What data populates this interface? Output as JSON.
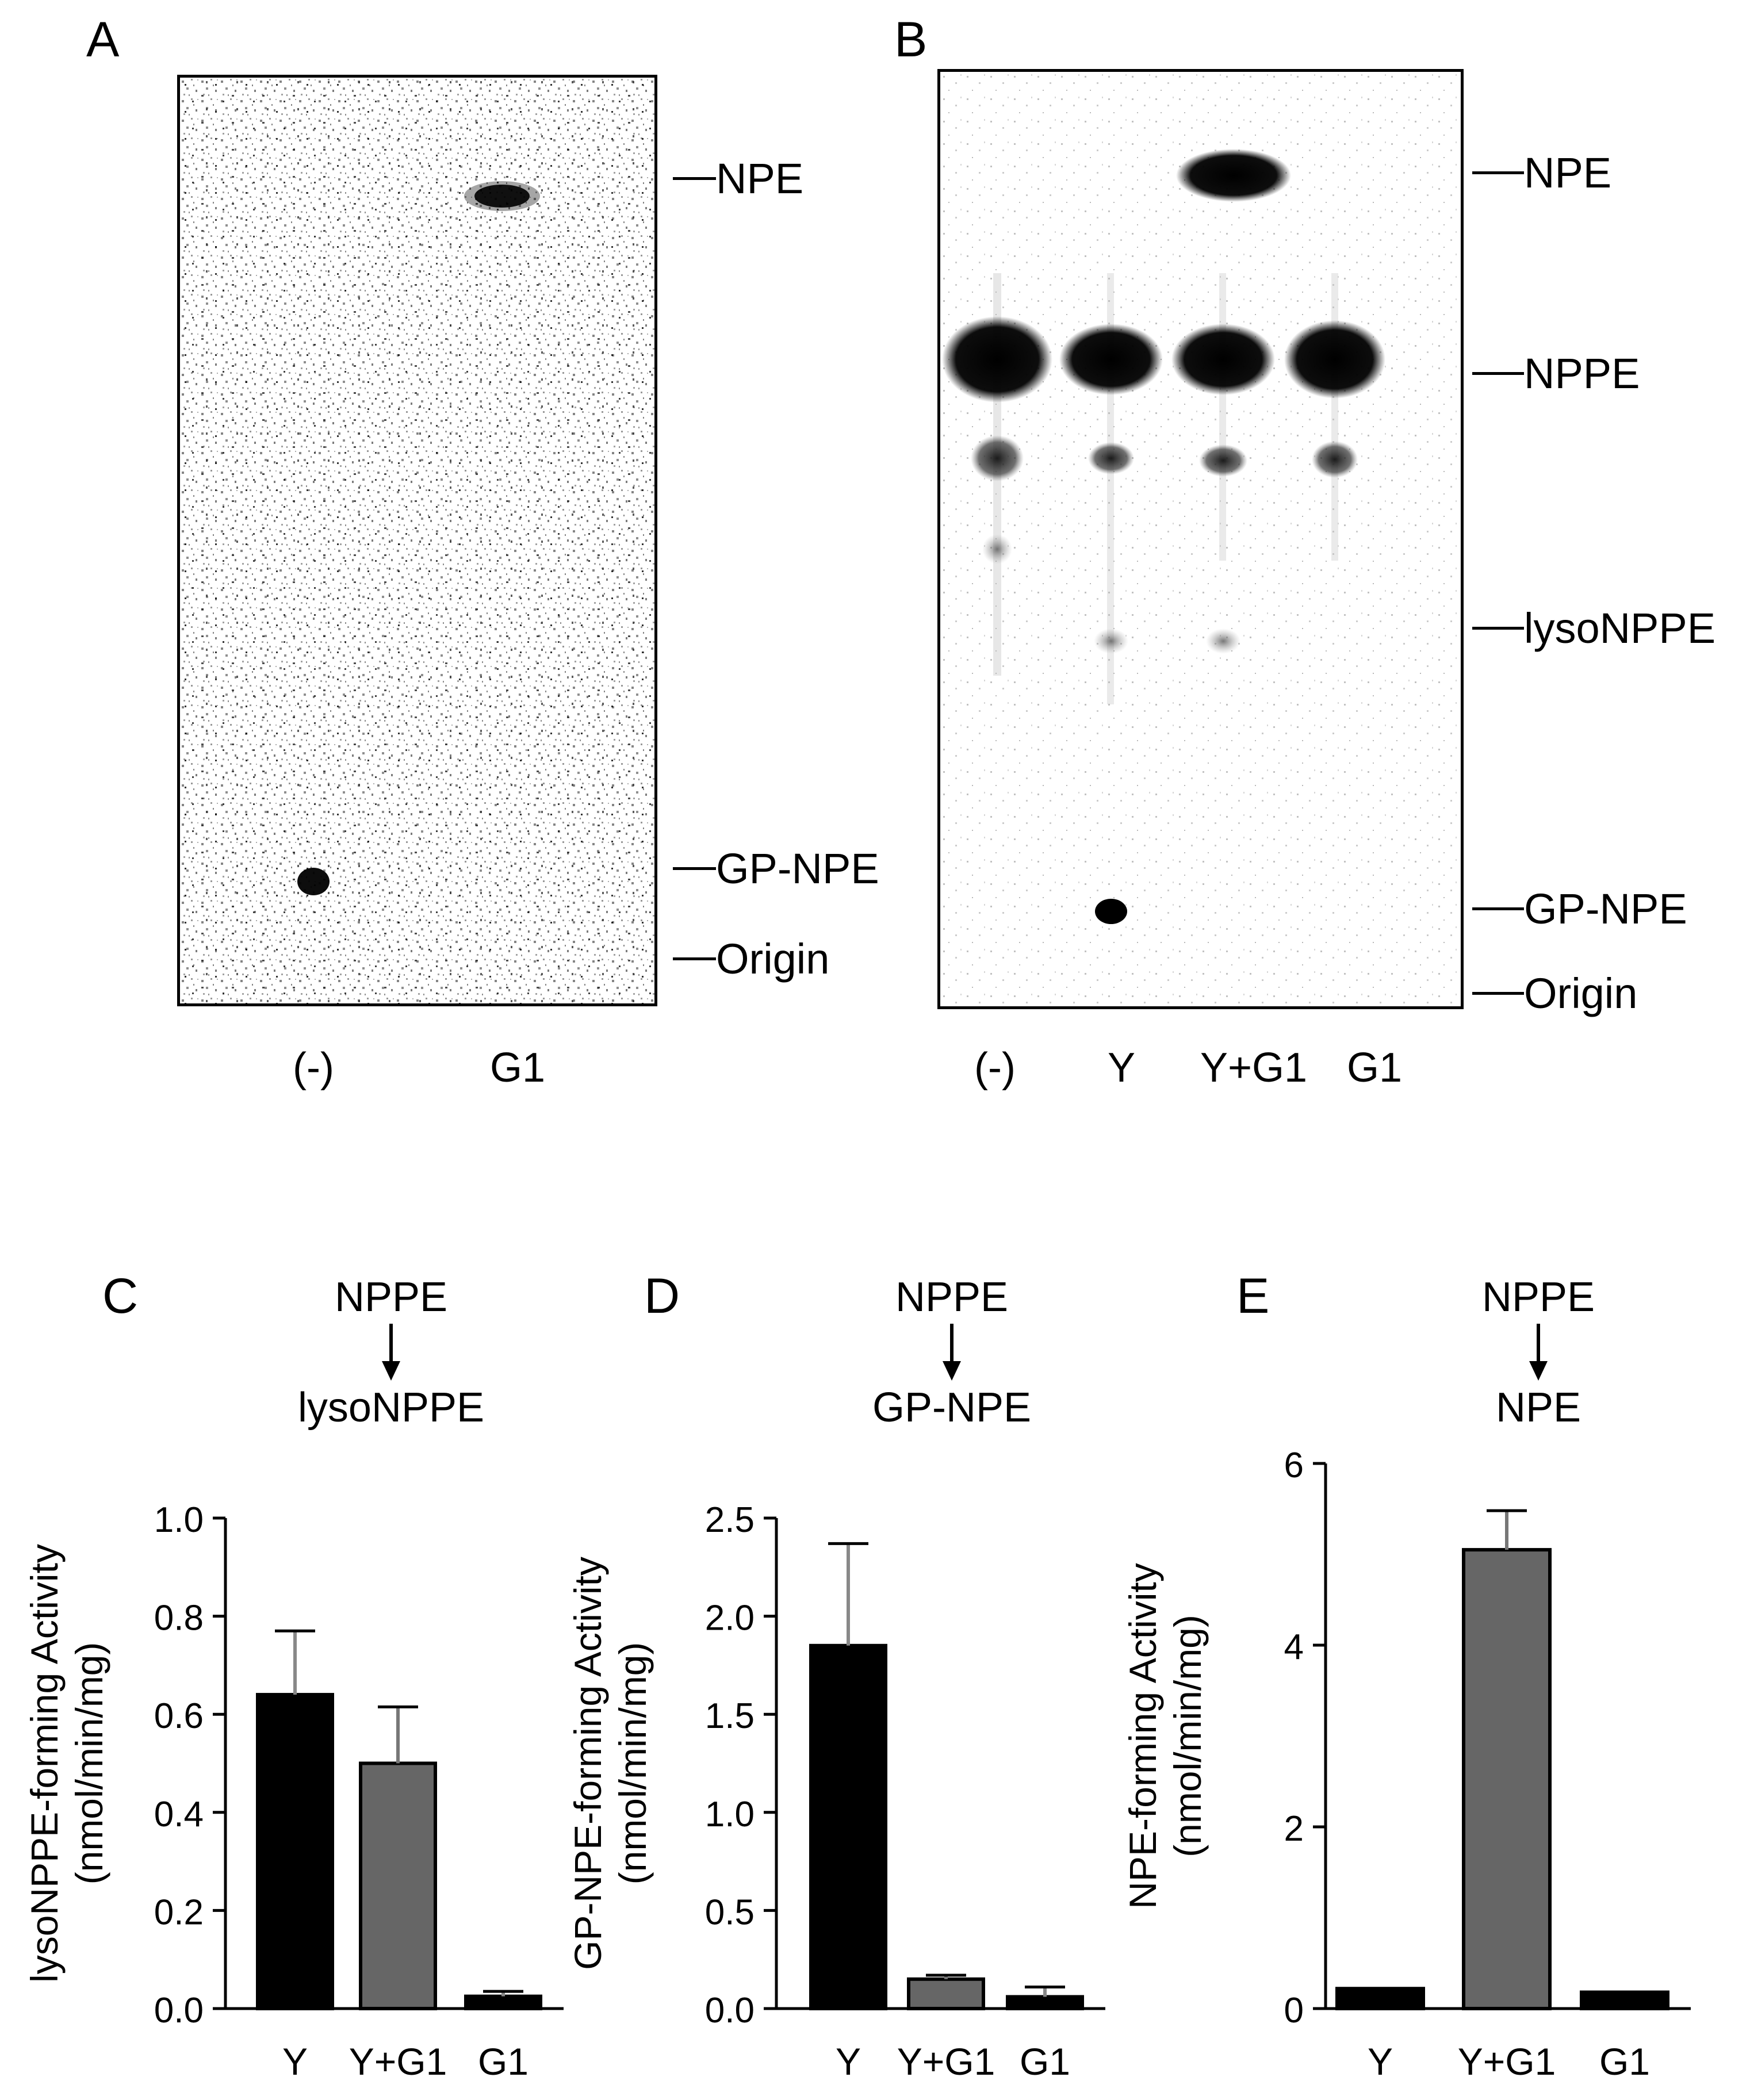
{
  "panelA": {
    "label": "A",
    "lanes": [
      "(-)",
      "G1"
    ],
    "markers": [
      "NPE",
      "GP-NPE",
      "Origin"
    ]
  },
  "panelB": {
    "label": "B",
    "lanes": [
      "(-)",
      "Y",
      "Y+G1",
      "G1"
    ],
    "markers": [
      "NPE",
      "NPPE",
      "lysoNPPE",
      "GP-NPE",
      "Origin"
    ]
  },
  "chart_data": [
    {
      "type": "bar",
      "label": "C",
      "flow": {
        "from": "NPPE",
        "to": "lysoNPPE"
      },
      "categories": [
        "Y",
        "Y+G1",
        "G1"
      ],
      "values": [
        0.64,
        0.5,
        0.025
      ],
      "errors": [
        0.13,
        0.115,
        0.01
      ],
      "ylabel": "lysoNPPE-forming Activity",
      "yunit": "(nmol/min/mg)",
      "ylim": [
        0,
        1.0
      ],
      "yticks": [
        "0.0",
        "0.2",
        "0.4",
        "0.6",
        "0.8",
        "1.0"
      ],
      "colors": [
        "#000000",
        "#666666",
        "#000000"
      ]
    },
    {
      "type": "bar",
      "label": "D",
      "flow": {
        "from": "NPPE",
        "to": "GP-NPE"
      },
      "categories": [
        "Y",
        "Y+G1",
        "G1"
      ],
      "values": [
        1.85,
        0.15,
        0.06
      ],
      "errors": [
        0.52,
        0.02,
        0.05
      ],
      "ylabel": "GP-NPE-forming Activity",
      "yunit": "(nmol/min/mg)",
      "ylim": [
        0,
        2.5
      ],
      "yticks": [
        "0.0",
        "0.5",
        "1.0",
        "1.5",
        "2.0",
        "2.5"
      ],
      "colors": [
        "#000000",
        "#666666",
        "#000000"
      ]
    },
    {
      "type": "bar",
      "label": "E",
      "flow": {
        "from": "NPPE",
        "to": "NPE"
      },
      "categories": [
        "Y",
        "Y+G1",
        "G1"
      ],
      "values": [
        0.22,
        5.05,
        0.18
      ],
      "errors": [
        0.0,
        0.43,
        0.0
      ],
      "ylabel": "NPE-forming Activity",
      "yunit": "(nmol/min/mg)",
      "ylim": [
        0,
        6
      ],
      "yticks": [
        "0",
        "2",
        "4",
        "6"
      ],
      "colors": [
        "#000000",
        "#666666",
        "#000000"
      ]
    }
  ]
}
